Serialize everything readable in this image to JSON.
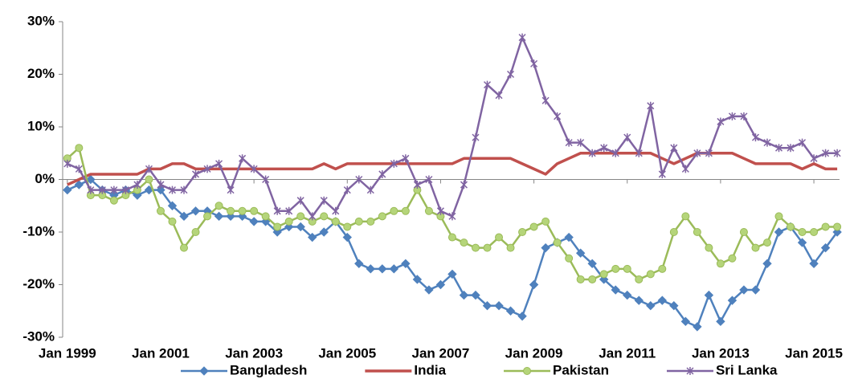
{
  "chart_data": {
    "type": "line",
    "x": [
      1999,
      1999.25,
      1999.5,
      1999.75,
      2000,
      2000.25,
      2000.5,
      2000.75,
      2001,
      2001.25,
      2001.5,
      2001.75,
      2002,
      2002.25,
      2002.5,
      2002.75,
      2003,
      2003.25,
      2003.5,
      2003.75,
      2004,
      2004.25,
      2004.5,
      2004.75,
      2005,
      2005.25,
      2005.5,
      2005.75,
      2006,
      2006.25,
      2006.5,
      2006.75,
      2007,
      2007.25,
      2007.5,
      2007.75,
      2008,
      2008.25,
      2008.5,
      2008.75,
      2009,
      2009.25,
      2009.5,
      2009.75,
      2010,
      2010.25,
      2010.5,
      2010.75,
      2011,
      2011.25,
      2011.5,
      2011.75,
      2012,
      2012.25,
      2012.5,
      2012.75,
      2013,
      2013.25,
      2013.5,
      2013.75,
      2014,
      2014.25,
      2014.5,
      2014.75,
      2015,
      2015.25,
      2015.5
    ],
    "series": [
      {
        "name": "Bangladesh",
        "color": "#4f81bd",
        "marker": "diamond",
        "values": [
          -2,
          -1,
          0,
          -2,
          -3,
          -2,
          -3,
          -2,
          -2,
          -5,
          -7,
          -6,
          -6,
          -7,
          -7,
          -7,
          -8,
          -8,
          -10,
          -9,
          -9,
          -11,
          -10,
          -8,
          -11,
          -16,
          -17,
          -17,
          -17,
          -16,
          -19,
          -21,
          -20,
          -18,
          -22,
          -22,
          -24,
          -24,
          -25,
          -26,
          -20,
          -13,
          -12,
          -11,
          -14,
          -16,
          -19,
          -21,
          -22,
          -23,
          -24,
          -23,
          -24,
          -27,
          -28,
          -22,
          -27,
          -23,
          -21,
          -21,
          -16,
          -10,
          -9,
          -12,
          -16,
          -13,
          -10
        ]
      },
      {
        "name": "India",
        "color": "#c0504d",
        "marker": "none",
        "values": [
          -1,
          0,
          1,
          1,
          1,
          1,
          1,
          2,
          2,
          3,
          3,
          2,
          2,
          2,
          2,
          2,
          2,
          2,
          2,
          2,
          2,
          2,
          3,
          2,
          3,
          3,
          3,
          3,
          3,
          3,
          3,
          3,
          3,
          3,
          4,
          4,
          4,
          4,
          4,
          3,
          2,
          1,
          3,
          4,
          5,
          5,
          5,
          5,
          5,
          5,
          5,
          4,
          3,
          4,
          5,
          5,
          5,
          5,
          4,
          3,
          3,
          3,
          3,
          2,
          3,
          2,
          2
        ]
      },
      {
        "name": "Pakistan",
        "color": "#9bbb59",
        "marker": "circle",
        "values": [
          4,
          6,
          -3,
          -3,
          -4,
          -3,
          -2,
          0,
          -6,
          -8,
          -13,
          -10,
          -7,
          -5,
          -6,
          -6,
          -6,
          -7,
          -9,
          -8,
          -7,
          -8,
          -7,
          -8,
          -9,
          -8,
          -8,
          -7,
          -6,
          -6,
          -2,
          -6,
          -7,
          -11,
          -12,
          -13,
          -13,
          -11,
          -13,
          -10,
          -9,
          -8,
          -12,
          -15,
          -19,
          -19,
          -18,
          -17,
          -17,
          -19,
          -18,
          -17,
          -10,
          -7,
          -10,
          -13,
          -16,
          -15,
          -10,
          -13,
          -12,
          -7,
          -9,
          -10,
          -10,
          -9,
          -9
        ]
      },
      {
        "name": "Sri Lanka",
        "color": "#8064a2",
        "marker": "asterisk",
        "values": [
          3,
          2,
          -2,
          -2,
          -2,
          -2,
          -1,
          2,
          -1,
          -2,
          -2,
          1,
          2,
          3,
          -2,
          4,
          2,
          0,
          -6,
          -6,
          -4,
          -7,
          -4,
          -6,
          -2,
          0,
          -2,
          1,
          3,
          4,
          -1,
          0,
          -6,
          -7,
          -1,
          8,
          18,
          16,
          20,
          27,
          22,
          15,
          12,
          7,
          7,
          5,
          6,
          5,
          8,
          5,
          14,
          1,
          6,
          2,
          5,
          5,
          11,
          12,
          12,
          8,
          7,
          6,
          6,
          7,
          4,
          5,
          5
        ]
      }
    ],
    "xlim": [
      1998.9,
      2015.55
    ],
    "xticks": [
      {
        "value": 1999,
        "label": "Jan 1999"
      },
      {
        "value": 2001,
        "label": "Jan 2001"
      },
      {
        "value": 2003,
        "label": "Jan 2003"
      },
      {
        "value": 2005,
        "label": "Jan 2005"
      },
      {
        "value": 2007,
        "label": "Jan 2007"
      },
      {
        "value": 2009,
        "label": "Jan 2009"
      },
      {
        "value": 2011,
        "label": "Jan 2011"
      },
      {
        "value": 2013,
        "label": "Jan 2013"
      },
      {
        "value": 2015,
        "label": "Jan 2015"
      }
    ],
    "ylim": [
      -30,
      30
    ],
    "yticks": [
      {
        "value": -30,
        "label": "-30%"
      },
      {
        "value": -20,
        "label": "-20%"
      },
      {
        "value": -10,
        "label": "-10%"
      },
      {
        "value": 0,
        "label": "0%"
      },
      {
        "value": 10,
        "label": "10%"
      },
      {
        "value": 20,
        "label": "20%"
      },
      {
        "value": 30,
        "label": "30%"
      }
    ],
    "grid": false,
    "legend": "bottom"
  }
}
